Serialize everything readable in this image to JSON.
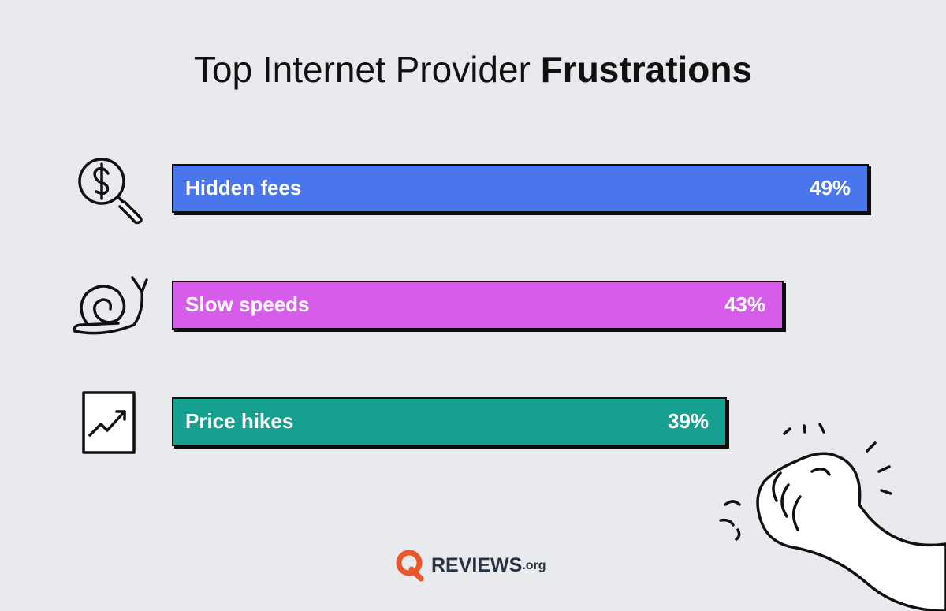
{
  "chart_data": {
    "type": "bar",
    "orientation": "horizontal",
    "title_regular": "Top Internet Provider",
    "title_bold": "Frustrations",
    "categories": [
      "Hidden fees",
      "Slow speeds",
      "Price hikes"
    ],
    "values": [
      49,
      43,
      39
    ],
    "value_labels": [
      "49%",
      "43%",
      "39%"
    ],
    "colors": [
      "#4a76ec",
      "#d65de9",
      "#12a08f"
    ]
  },
  "brand": {
    "name": "REVIEWS",
    "suffix": ".org"
  }
}
